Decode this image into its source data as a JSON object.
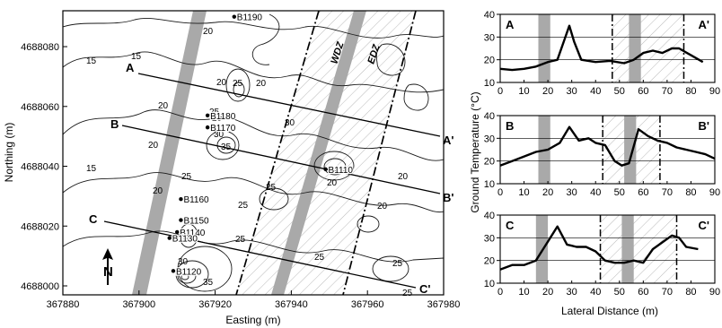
{
  "map": {
    "x_label": "Easting (m)",
    "y_label": "Northing (m)",
    "x_ticks": [
      367880,
      367900,
      367920,
      367940,
      367960,
      367980
    ],
    "y_ticks": [
      4688000,
      4688020,
      4688040,
      4688060,
      4688080
    ],
    "xlim": [
      367880,
      367980
    ],
    "ylim": [
      4687997,
      4688092
    ],
    "zone_labels": [
      "WDZ",
      "EDZ"
    ],
    "north_symbol": "N",
    "profiles": [
      {
        "start": "A",
        "end": "A'"
      },
      {
        "start": "B",
        "end": "B'"
      },
      {
        "start": "C",
        "end": "C'"
      }
    ],
    "boreholes": [
      {
        "id": "B1190",
        "x": 367925,
        "y": 4688090
      },
      {
        "id": "B1180",
        "x": 367918,
        "y": 4688057
      },
      {
        "id": "B1170",
        "x": 367918,
        "y": 4688053
      },
      {
        "id": "B1110",
        "x": 367949,
        "y": 4688039
      },
      {
        "id": "B1160",
        "x": 367911,
        "y": 4688029
      },
      {
        "id": "B1150",
        "x": 367911,
        "y": 4688022
      },
      {
        "id": "B1140",
        "x": 367910,
        "y": 4688018
      },
      {
        "id": "B1130",
        "x": 367908,
        "y": 4688016
      },
      {
        "id": "B1120",
        "x": 367909,
        "y": 4688005
      }
    ],
    "contour_labels": [
      "15",
      "15",
      "20",
      "20",
      "20",
      "20",
      "25",
      "20",
      "25",
      "30",
      "35",
      "15",
      "20",
      "25",
      "30",
      "20",
      "25",
      "20",
      "20",
      "25",
      "30",
      "25",
      "35",
      "25",
      "20",
      "25",
      "25"
    ]
  },
  "chart_data": [
    {
      "type": "line",
      "title": "A",
      "end_label": "A'",
      "xlabel": "Lateral Distance (m)",
      "ylabel": "Ground Temperature (°C)",
      "xlim": [
        0,
        90
      ],
      "ylim": [
        10,
        40
      ],
      "x_ticks": [
        0,
        10,
        20,
        30,
        40,
        50,
        60,
        70,
        80,
        90
      ],
      "y_ticks": [
        10,
        20,
        30,
        40
      ],
      "grid": "horizontal",
      "series": [
        {
          "x": [
            0,
            5,
            10,
            15,
            20,
            24,
            27,
            29,
            31,
            34,
            40,
            46,
            52,
            56,
            60,
            64,
            68,
            72,
            75,
            80,
            85
          ],
          "y": [
            16,
            15.5,
            16,
            17,
            19,
            20,
            29,
            35,
            28,
            20,
            19,
            19.5,
            18.5,
            20,
            23,
            24,
            23,
            25,
            25,
            22,
            19
          ]
        }
      ],
      "gray_bands": [
        [
          16,
          21
        ],
        [
          54,
          59
        ]
      ],
      "hatched_zone": [
        47,
        77
      ]
    },
    {
      "type": "line",
      "title": "B",
      "end_label": "B'",
      "xlabel": "Lateral Distance (m)",
      "ylabel": "Ground Temperature (°C)",
      "xlim": [
        0,
        90
      ],
      "ylim": [
        10,
        40
      ],
      "x_ticks": [
        0,
        10,
        20,
        30,
        40,
        50,
        60,
        70,
        80,
        90
      ],
      "y_ticks": [
        10,
        20,
        30,
        40
      ],
      "grid": "horizontal",
      "series": [
        {
          "x": [
            0,
            5,
            10,
            15,
            20,
            25,
            29,
            33,
            37,
            40,
            44,
            48,
            51,
            54,
            58,
            62,
            66,
            70,
            74,
            78,
            82,
            86,
            90
          ],
          "y": [
            18,
            20,
            22,
            24,
            25,
            28,
            35,
            29,
            30,
            28,
            27,
            20,
            18,
            19,
            34,
            31,
            29,
            28,
            26,
            25,
            24,
            23,
            21
          ]
        }
      ],
      "gray_bands": [
        [
          16,
          21
        ],
        [
          52,
          57
        ]
      ],
      "hatched_zone": [
        43,
        67
      ]
    },
    {
      "type": "line",
      "title": "C",
      "end_label": "C'",
      "xlabel": "Lateral Distance (m)",
      "ylabel": "Ground Temperature (°C)",
      "xlim": [
        0,
        90
      ],
      "ylim": [
        10,
        40
      ],
      "x_ticks": [
        0,
        10,
        20,
        30,
        40,
        50,
        60,
        70,
        80,
        90
      ],
      "y_ticks": [
        10,
        20,
        30,
        40
      ],
      "grid": "horizontal",
      "series": [
        {
          "x": [
            0,
            5,
            10,
            15,
            18,
            21,
            24,
            28,
            32,
            36,
            40,
            44,
            48,
            52,
            56,
            60,
            64,
            68,
            72,
            75,
            78,
            83
          ],
          "y": [
            16,
            18,
            18,
            20,
            25,
            30,
            35,
            27,
            26,
            26,
            24,
            20,
            19,
            19,
            20,
            19,
            25,
            28,
            31,
            30,
            26,
            25
          ]
        }
      ],
      "gray_bands": [
        [
          15,
          20
        ],
        [
          51,
          56
        ]
      ],
      "hatched_zone": [
        42,
        74
      ]
    }
  ]
}
